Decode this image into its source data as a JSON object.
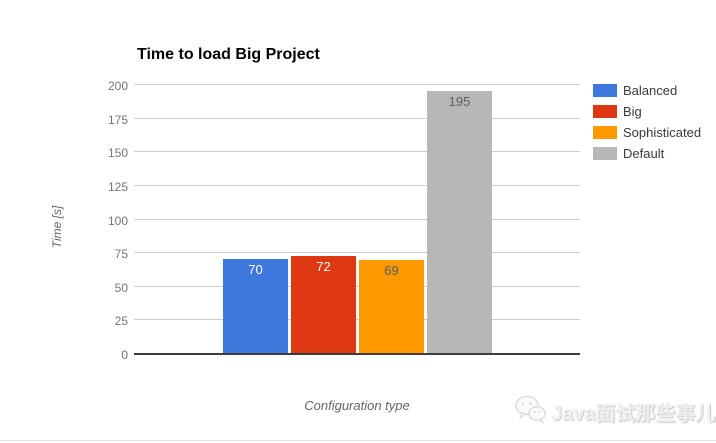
{
  "chart_data": {
    "type": "bar",
    "title": "Time to load Big Project",
    "xlabel": "Configuration type",
    "ylabel": "Time [s]",
    "categories": [
      "Balanced",
      "Big",
      "Sophisticated",
      "Default"
    ],
    "values": [
      70,
      72,
      69,
      195
    ],
    "bar_colors": [
      "#3E78DC",
      "#DC3912",
      "#FF9900",
      "#B7B7B6"
    ],
    "value_label_colors": [
      "#FFFFFF",
      "#FFFFFF",
      "#5E5E5E",
      "#5E5E5E"
    ],
    "ylim": [
      0,
      200
    ],
    "yticks": [
      0,
      25,
      50,
      75,
      100,
      125,
      150,
      175,
      200
    ],
    "grid": true,
    "legend_position": "right",
    "grid_color": "#CCCCCC",
    "axis_color": "#3C3C3C"
  },
  "watermark": {
    "text": "Java面试那些事儿",
    "icon": "wechat-icon"
  }
}
